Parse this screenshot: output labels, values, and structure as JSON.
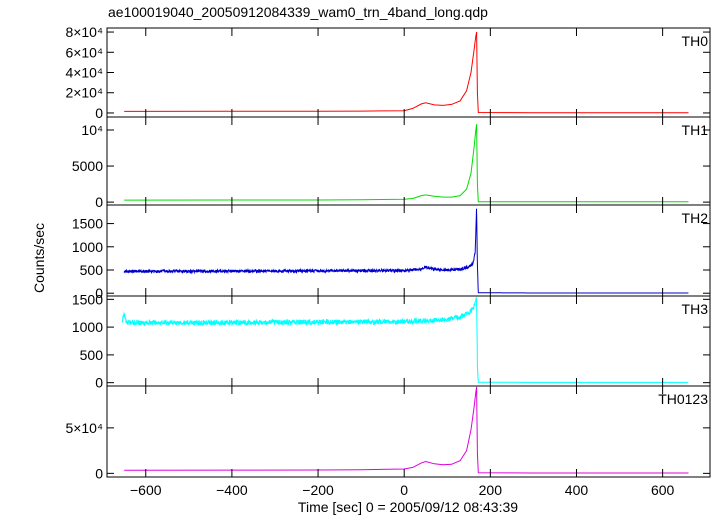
{
  "chart_data": {
    "type": "line",
    "title": "ae100019040_20050912084339_wam0_trn_4band_long.qdp",
    "xlabel": "Time [sec] 0 = 2005/09/12 08:43:39",
    "ylabel": "Counts/sec",
    "xlim": [
      -690,
      710
    ],
    "x_ticks": [
      -600,
      -400,
      -200,
      0,
      200,
      400,
      600
    ],
    "x_tick_labels": [
      "−600",
      "−400",
      "−200",
      "0",
      "200",
      "400",
      "600"
    ],
    "grid": false,
    "panels": [
      {
        "name": "TH0",
        "color": "#ff0000",
        "ylim": [
          -4000,
          84000
        ],
        "y_ticks": [
          0,
          20000,
          40000,
          60000,
          80000
        ],
        "y_tick_labels": [
          "0",
          "2×10⁴",
          "4×10⁴",
          "6×10⁴",
          "8×10⁴"
        ],
        "x": [
          -650,
          -400,
          -200,
          -100,
          0,
          20,
          40,
          50,
          70,
          90,
          110,
          130,
          145,
          155,
          162,
          166,
          168,
          170,
          172,
          300,
          500,
          660
        ],
        "values": [
          1500,
          1600,
          1700,
          1800,
          2200,
          4500,
          9000,
          10000,
          8000,
          7500,
          8500,
          12000,
          22000,
          40000,
          62000,
          75000,
          80000,
          20000,
          400,
          300,
          250,
          250
        ]
      },
      {
        "name": "TH1",
        "color": "#00dd00",
        "ylim": [
          -400,
          11800
        ],
        "y_ticks": [
          0,
          5000,
          10000
        ],
        "y_tick_labels": [
          "0",
          "5000",
          "10⁴"
        ],
        "x": [
          -650,
          -400,
          -200,
          -100,
          0,
          20,
          40,
          50,
          70,
          90,
          110,
          130,
          145,
          155,
          162,
          166,
          168,
          170,
          172,
          300,
          500,
          660
        ],
        "values": [
          280,
          290,
          300,
          320,
          400,
          500,
          900,
          1000,
          800,
          700,
          700,
          900,
          1800,
          4000,
          7500,
          9800,
          10800,
          2500,
          60,
          50,
          50,
          50
        ]
      },
      {
        "name": "TH2",
        "color": "#0000cc",
        "ylim": [
          -60,
          1900
        ],
        "y_ticks": [
          0,
          500,
          1000,
          1500
        ],
        "y_tick_labels": [
          "0",
          "500",
          "1000",
          "1500"
        ],
        "noise": 30,
        "x": [
          -650,
          -400,
          -200,
          0,
          40,
          50,
          70,
          100,
          130,
          150,
          160,
          165,
          167,
          168,
          170,
          172,
          300,
          500,
          660
        ],
        "values": [
          470,
          475,
          480,
          490,
          520,
          560,
          520,
          500,
          520,
          560,
          650,
          900,
          1500,
          1900,
          600,
          10,
          5,
          5,
          5
        ]
      },
      {
        "name": "TH3",
        "color": "#00ffff",
        "ylim": [
          -60,
          1560
        ],
        "y_ticks": [
          0,
          500,
          1000,
          1500
        ],
        "y_tick_labels": [
          "0",
          "500",
          "1000",
          "1500"
        ],
        "noise": 45,
        "x": [
          -655,
          -650,
          -645,
          -400,
          -200,
          0,
          50,
          100,
          130,
          150,
          160,
          165,
          168,
          170,
          172,
          300,
          500,
          660
        ],
        "values": [
          1100,
          1240,
          1080,
          1080,
          1090,
          1100,
          1120,
          1140,
          1180,
          1260,
          1330,
          1450,
          1550,
          300,
          8,
          5,
          5,
          5
        ]
      },
      {
        "name": "TH0123",
        "color": "#dd00dd",
        "ylim": [
          -4000,
          96000
        ],
        "y_ticks": [
          0,
          50000
        ],
        "y_tick_labels": [
          "0",
          "5×10⁴"
        ],
        "x": [
          -650,
          -400,
          -200,
          -100,
          0,
          20,
          40,
          50,
          70,
          90,
          110,
          130,
          145,
          155,
          162,
          166,
          168,
          170,
          172,
          300,
          500,
          660
        ],
        "values": [
          3500,
          3600,
          3700,
          3900,
          4800,
          6500,
          11500,
          13000,
          10500,
          9500,
          10000,
          14000,
          25000,
          48000,
          72000,
          88000,
          95000,
          22000,
          600,
          450,
          400,
          400
        ]
      }
    ]
  }
}
